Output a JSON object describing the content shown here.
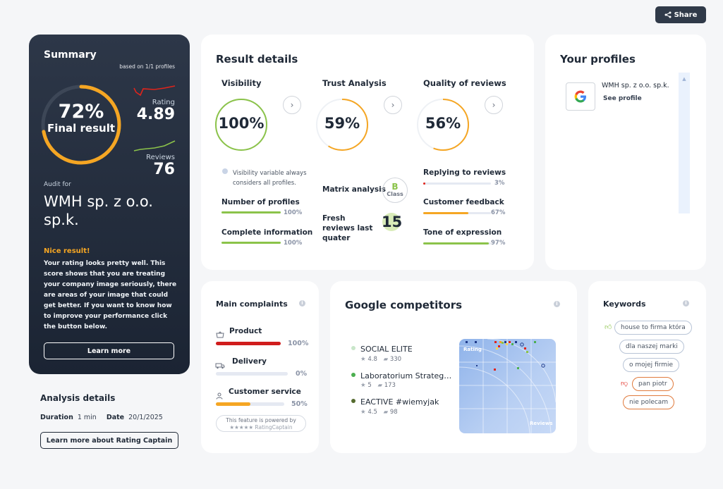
{
  "header": {
    "share_label": "Share"
  },
  "summary": {
    "title": "Summary",
    "based_on": "based on 1/1 profiles",
    "final_pct": "72%",
    "final_value": 0.72,
    "final_label": "Final result",
    "rating_label": "Rating",
    "rating_value": "4.89",
    "reviews_label": "Reviews",
    "reviews_value": "76",
    "audit_label": "Audit for",
    "audit_name": "WMH sp. z o.o. sp.k.",
    "nice_title": "Nice result!",
    "nice_text": "Your rating looks pretty well. This score shows that you are treating your company image seriously, there are areas of your image that could get better. If you want to know how to improve your performance click the button below.",
    "learn_more": "Learn more",
    "colors": {
      "ring": "#f5a623",
      "rating_spark": "#e0241b",
      "reviews_spark": "#8bc34a"
    }
  },
  "analysis": {
    "title": "Analysis details",
    "duration_label": "Duration",
    "duration_value": "1 min",
    "date_label": "Date",
    "date_value": "20/1/2025",
    "about_button": "Learn more about Rating Captain"
  },
  "result_details": {
    "title": "Result details",
    "visibility": {
      "title": "Visibility",
      "value": "100%",
      "fraction": 1.0,
      "color": "#8bc34a"
    },
    "trust": {
      "title": "Trust Analysis",
      "value": "59%",
      "fraction": 0.59,
      "color": "#f5a623"
    },
    "quality": {
      "title": "Quality of reviews",
      "value": "56%",
      "fraction": 0.56,
      "color": "#f5a623"
    },
    "visibility_note": "Visibility variable always considers all profiles.",
    "bars_left": [
      {
        "label": "Number of profiles",
        "pct": "100%",
        "fraction": 1.0,
        "color": "#8bc34a"
      },
      {
        "label": "Complete information",
        "pct": "100%",
        "fraction": 1.0,
        "color": "#8bc34a"
      }
    ],
    "matrix_label": "Matrix analysis",
    "matrix_class_letter": "B",
    "matrix_class_word": "Class",
    "fresh_label": "Fresh reviews last quater",
    "fresh_value": "15",
    "bars_right": [
      {
        "label": "Replying to reviews",
        "pct": "3%",
        "fraction": 0.03,
        "color": "#e0241b"
      },
      {
        "label": "Customer feedback",
        "pct": "67%",
        "fraction": 0.67,
        "color": "#f5a623"
      },
      {
        "label": "Tone of expression",
        "pct": "97%",
        "fraction": 0.97,
        "color": "#8bc34a"
      }
    ]
  },
  "profiles": {
    "title": "Your profiles",
    "items": [
      {
        "name": "WMH sp. z o.o. sp.k.",
        "link": "See profile",
        "icon": "google-icon"
      }
    ]
  },
  "complaints": {
    "title": "Main complaints",
    "items": [
      {
        "label": "Product",
        "pct": "100%",
        "fraction": 1.0,
        "color": "#d01c1c",
        "icon": "basket-icon"
      },
      {
        "label": "Delivery",
        "pct": "0%",
        "fraction": 0.0,
        "color": "#d01c1c",
        "icon": "truck-icon"
      },
      {
        "label": "Customer service",
        "pct": "50%",
        "fraction": 0.5,
        "color": "#f5a623",
        "icon": "person-icon"
      }
    ],
    "powered_text": "This feature is powered by",
    "powered_brand": "★★★★★ RatingCaptain"
  },
  "competitors": {
    "title": "Google competitors",
    "items": [
      {
        "name": "SOCIAL ELITE",
        "rating": "4.8",
        "reviews": "330",
        "dot": "#c8e6c9"
      },
      {
        "name": "Laboratorium Strateg…",
        "rating": "5",
        "reviews": "173",
        "dot": "#4caf50"
      },
      {
        "name": "EACTIVE #wiemyjak",
        "rating": "4.5",
        "reviews": "98",
        "dot": "#556b2f"
      }
    ],
    "chart_x_label": "Reviews",
    "chart_y_label": "Rating"
  },
  "keywords": {
    "title": "Keywords",
    "positive": [
      "house to firma która",
      "dla naszej marki",
      "o mojej firmie"
    ],
    "negative": [
      "pan piotr",
      "nie polecam"
    ]
  }
}
